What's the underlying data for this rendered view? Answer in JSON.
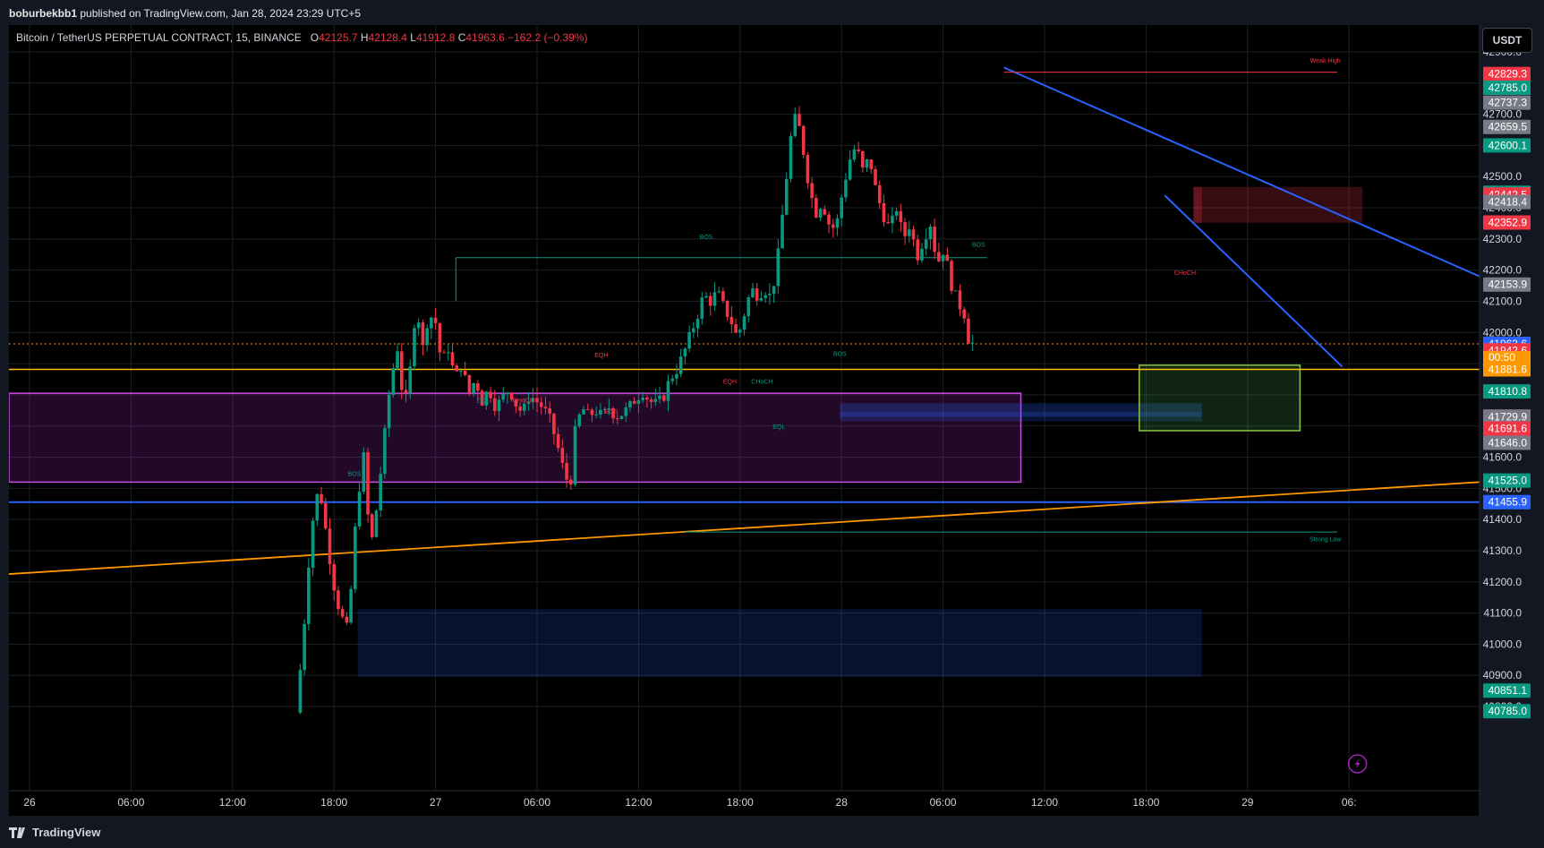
{
  "publish": {
    "author": "boburbekbb1",
    "text": "published on TradingView.com, Jan 28, 2024 23:29 UTC+5"
  },
  "legend": {
    "symbol": "Bitcoin / TetherUS PERPETUAL CONTRACT, 15, BINANCE",
    "o_label": "O",
    "o_value": "42125.7",
    "h_label": "H",
    "h_value": "42128.4",
    "l_label": "L",
    "l_value": "41912.8",
    "c_label": "C",
    "c_value": "41963.6",
    "change": "−162.2 (−0.39%)"
  },
  "currency_button": "USDT",
  "brand": "TradingView",
  "colors": {
    "background": "#000000",
    "up": "#089981",
    "down": "#f23645",
    "trendline": "#2962ff",
    "orange_line": "#ff9800",
    "yellow_line": "#ffc107",
    "blue_line": "#2962ff"
  },
  "chart_data": {
    "type": "candlestick",
    "ylim": [
      40760,
      42925
    ],
    "y_ticks": [
      "42900.0",
      "42800.0",
      "42700.0",
      "42600.0",
      "42500.0",
      "42400.0",
      "42300.0",
      "42200.0",
      "42100.0",
      "42000.0",
      "41900.0",
      "41800.0",
      "41700.0",
      "41600.0",
      "41500.0",
      "41400.0",
      "41300.0",
      "41200.0",
      "41100.0",
      "41000.0",
      "40900.0",
      "40800.0"
    ],
    "x_ticks": [
      "26",
      "06:00",
      "12:00",
      "18:00",
      "27",
      "06:00",
      "12:00",
      "18:00",
      "28",
      "06:00",
      "12:00",
      "18:00",
      "29",
      "06:"
    ],
    "price_labels": [
      {
        "value": "42829.3",
        "color": "#f23645"
      },
      {
        "value": "42785.0",
        "color": "#089981"
      },
      {
        "value": "42737.3",
        "color": "#787b86"
      },
      {
        "value": "42659.5",
        "color": "#787b86"
      },
      {
        "value": "42600.1",
        "color": "#089981"
      },
      {
        "value": "42448.3",
        "color": "#089981"
      },
      {
        "value": "42442.5",
        "color": "#f23645"
      },
      {
        "value": "42418.4",
        "color": "#787b86"
      },
      {
        "value": "42352.9",
        "color": "#f23645"
      },
      {
        "value": "42153.9",
        "color": "#787b86"
      },
      {
        "value": "41963.6",
        "color": "#ff9800"
      },
      {
        "value": "41963.6",
        "color": "#2962ff"
      },
      {
        "value": "41942.6",
        "color": "#f23645"
      },
      {
        "value": "41881.6",
        "color": "#ff9800"
      },
      {
        "value": "41810.8",
        "color": "#089981"
      },
      {
        "value": "41730.0",
        "color": "#f23645"
      },
      {
        "value": "41729.9",
        "color": "#787b86"
      },
      {
        "value": "41691.6",
        "color": "#f23645"
      },
      {
        "value": "41646.0",
        "color": "#787b86"
      },
      {
        "value": "41525.0",
        "color": "#089981"
      },
      {
        "value": "41455.9",
        "color": "#2962ff"
      },
      {
        "value": "40851.1",
        "color": "#089981"
      },
      {
        "value": "40785.0",
        "color": "#089981"
      }
    ],
    "countdown": "00:50",
    "annotations": [
      {
        "text": "BOS",
        "color": "#089981"
      },
      {
        "text": "BOS",
        "color": "#089981"
      },
      {
        "text": "BOS",
        "color": "#089981"
      },
      {
        "text": "BOS",
        "color": "#089981"
      },
      {
        "text": "BOS",
        "color": "#f23645"
      },
      {
        "text": "EQH",
        "color": "#f23645"
      },
      {
        "text": "EQH",
        "color": "#f23645"
      },
      {
        "text": "EQL",
        "color": "#089981"
      },
      {
        "text": "EQL",
        "color": "#089981"
      },
      {
        "text": "CHoCH",
        "color": "#f23645"
      },
      {
        "text": "CHoCH",
        "color": "#089981"
      },
      {
        "text": "CHoCH",
        "color": "#f23645"
      },
      {
        "text": "Weak High",
        "color": "#f23645"
      },
      {
        "text": "Strong Low",
        "color": "#089981"
      }
    ],
    "ohlc_path": [
      [
        16.0,
        40780
      ],
      [
        16.4,
        41000
      ],
      [
        16.8,
        41300
      ],
      [
        17.1,
        41450
      ],
      [
        17.4,
        41500
      ],
      [
        17.8,
        41350
      ],
      [
        18.2,
        41200
      ],
      [
        18.6,
        41100
      ],
      [
        19.0,
        41050
      ],
      [
        19.3,
        41200
      ],
      [
        19.6,
        41450
      ],
      [
        20.0,
        41600
      ],
      [
        20.4,
        41300
      ],
      [
        20.8,
        41450
      ],
      [
        21.2,
        41650
      ],
      [
        21.6,
        41850
      ],
      [
        22.0,
        41950
      ],
      [
        22.4,
        41750
      ],
      [
        22.8,
        41900
      ],
      [
        23.1,
        42100
      ],
      [
        23.5,
        41950
      ],
      [
        23.8,
        42050
      ],
      [
        24.2,
        42050
      ],
      [
        24.6,
        41900
      ],
      [
        25.0,
        41950
      ],
      [
        25.4,
        41850
      ],
      [
        25.8,
        41900
      ],
      [
        26.2,
        41800
      ],
      [
        26.6,
        41850
      ],
      [
        27.0,
        41780
      ],
      [
        27.4,
        41820
      ],
      [
        27.8,
        41760
      ],
      [
        28.2,
        41790
      ],
      [
        28.6,
        41820
      ],
      [
        29.0,
        41770
      ],
      [
        29.4,
        41740
      ],
      [
        29.8,
        41800
      ],
      [
        30.2,
        41780
      ],
      [
        30.6,
        41760
      ],
      [
        31.0,
        41720
      ],
      [
        31.4,
        41650
      ],
      [
        31.8,
        41560
      ],
      [
        32.2,
        41500
      ],
      [
        32.5,
        41680
      ],
      [
        32.9,
        41760
      ],
      [
        33.3,
        41730
      ],
      [
        33.7,
        41750
      ],
      [
        34.1,
        41730
      ],
      [
        34.5,
        41760
      ],
      [
        34.9,
        41730
      ],
      [
        35.3,
        41740
      ],
      [
        35.7,
        41760
      ],
      [
        36.1,
        41790
      ],
      [
        36.5,
        41810
      ],
      [
        36.9,
        41780
      ],
      [
        37.3,
        41770
      ],
      [
        37.7,
        41790
      ],
      [
        38.1,
        41850
      ],
      [
        38.5,
        41880
      ],
      [
        38.9,
        41930
      ],
      [
        39.3,
        41990
      ],
      [
        39.7,
        42050
      ],
      [
        40.1,
        42120
      ],
      [
        40.5,
        42100
      ],
      [
        40.9,
        42130
      ],
      [
        41.3,
        42080
      ],
      [
        41.7,
        42040
      ],
      [
        42.1,
        41980
      ],
      [
        42.5,
        42060
      ],
      [
        42.9,
        42140
      ],
      [
        43.3,
        42120
      ],
      [
        43.7,
        42140
      ],
      [
        44.1,
        42110
      ],
      [
        44.5,
        42250
      ],
      [
        44.9,
        42450
      ],
      [
        45.3,
        42650
      ],
      [
        45.6,
        42700
      ],
      [
        46.0,
        42580
      ],
      [
        46.3,
        42480
      ],
      [
        46.7,
        42380
      ],
      [
        47.1,
        42420
      ],
      [
        47.5,
        42350
      ],
      [
        47.9,
        42330
      ],
      [
        48.3,
        42450
      ],
      [
        48.7,
        42550
      ],
      [
        49.1,
        42600
      ],
      [
        49.5,
        42520
      ],
      [
        49.9,
        42560
      ],
      [
        50.3,
        42450
      ],
      [
        50.7,
        42380
      ],
      [
        51.1,
        42330
      ],
      [
        51.5,
        42400
      ],
      [
        51.9,
        42300
      ],
      [
        52.3,
        42350
      ],
      [
        52.7,
        42240
      ],
      [
        53.1,
        42300
      ],
      [
        53.5,
        42350
      ],
      [
        53.9,
        42220
      ],
      [
        54.3,
        42270
      ],
      [
        54.7,
        42160
      ],
      [
        55.1,
        42100
      ],
      [
        55.5,
        42060
      ],
      [
        55.8,
        41965
      ]
    ]
  }
}
